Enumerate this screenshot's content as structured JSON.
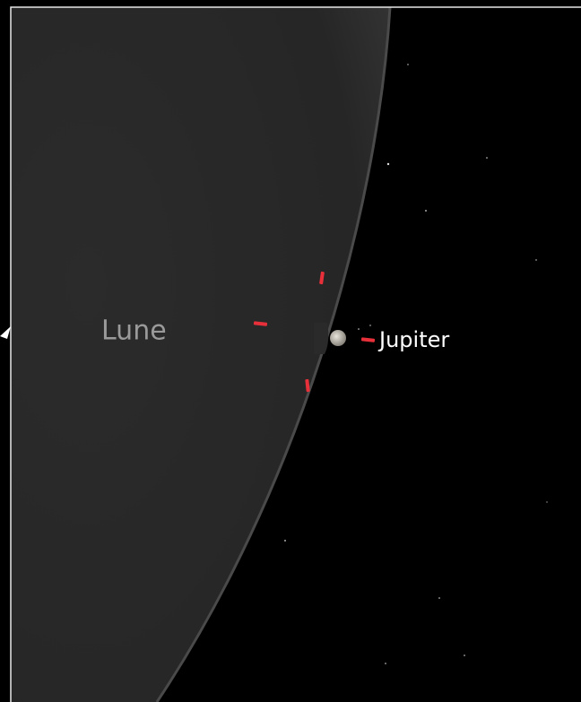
{
  "labels": {
    "moon": "Lune",
    "planet": "Jupiter"
  }
}
